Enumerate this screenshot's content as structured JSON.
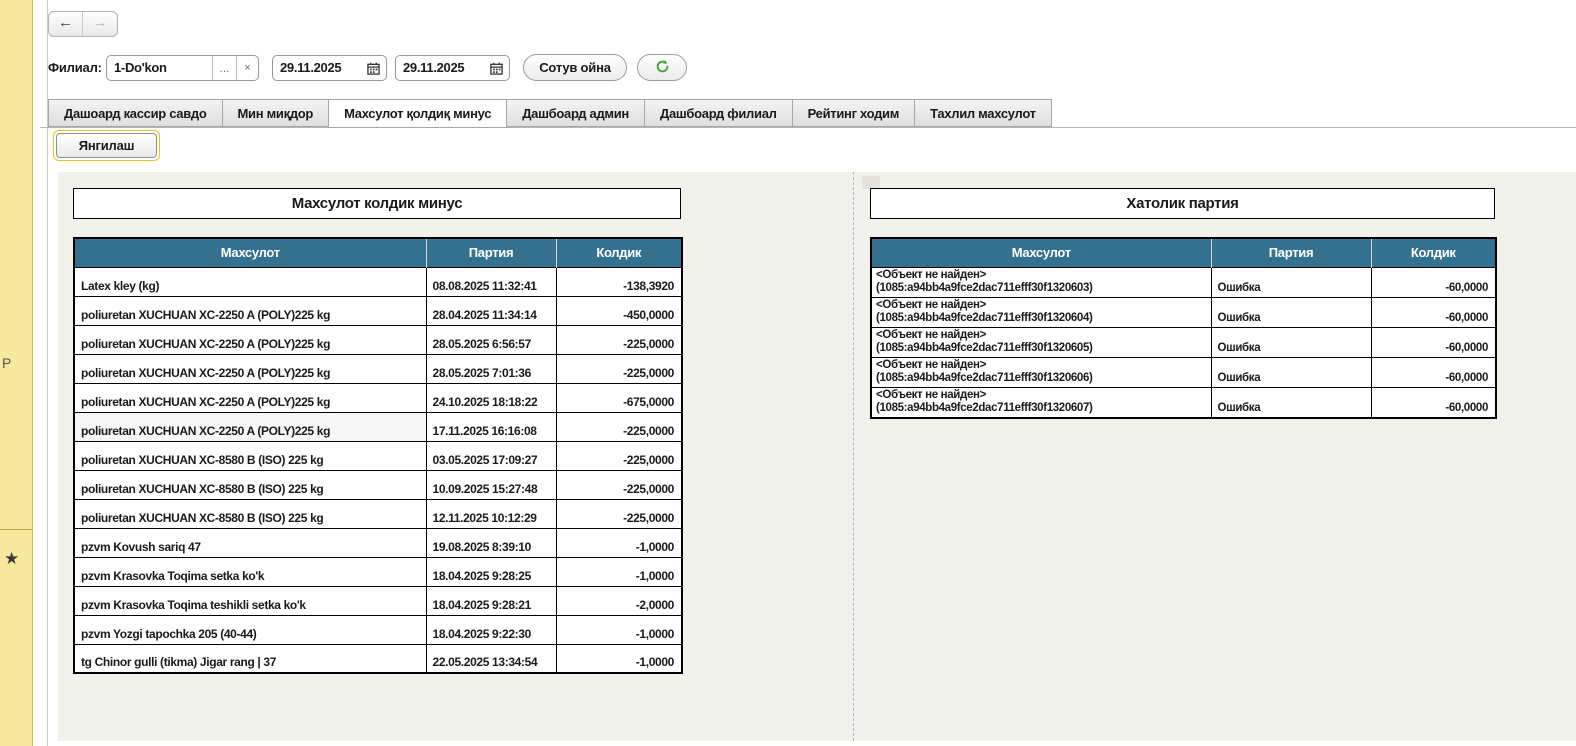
{
  "colors": {
    "accent": "#34718f",
    "sidebar": "#f6e99d",
    "refresh_green": "#3aa636"
  },
  "left_rail": {
    "letter": "P",
    "star": "★"
  },
  "nav": {
    "back": "←",
    "forward": "→"
  },
  "toolbar": {
    "branch_label": "Филиал:",
    "branch_value": "1-Do'kon",
    "lookup_button": "...",
    "clear_button": "×",
    "date_from": "29.11.2025",
    "date_to": "29.11.2025",
    "sales_window_button": "Сотув ойна"
  },
  "tabs": [
    {
      "label": "Дашоард кассир савдо",
      "active": false
    },
    {
      "label": "Мин миқдор",
      "active": false
    },
    {
      "label": "Махсулот қолдиқ минус",
      "active": true
    },
    {
      "label": "Дашбоард админ",
      "active": false
    },
    {
      "label": "Дашбоард филиал",
      "active": false
    },
    {
      "label": "Рейтинг ходим",
      "active": false
    },
    {
      "label": "Тахлил махсулот",
      "active": false
    }
  ],
  "refresh_button_label": "Янгилаш",
  "tables": {
    "minus": {
      "title": "Махсулот колдик минус",
      "columns": [
        "Махсулот",
        "Партия",
        "Колдик"
      ],
      "hover_row_index": 5,
      "rows": [
        [
          "Latex kley (kg)",
          "08.08.2025 11:32:41",
          "-138,3920"
        ],
        [
          "poliuretan XUCHUAN XC-2250 A (POLY)225 kg",
          "28.04.2025 11:34:14",
          "-450,0000"
        ],
        [
          "poliuretan XUCHUAN XC-2250 A (POLY)225 kg",
          "28.05.2025 6:56:57",
          "-225,0000"
        ],
        [
          "poliuretan XUCHUAN XC-2250 A (POLY)225 kg",
          "28.05.2025 7:01:36",
          "-225,0000"
        ],
        [
          "poliuretan XUCHUAN XC-2250 A (POLY)225 kg",
          "24.10.2025 18:18:22",
          "-675,0000"
        ],
        [
          "poliuretan XUCHUAN XC-2250 A (POLY)225 kg",
          "17.11.2025 16:16:08",
          "-225,0000"
        ],
        [
          "poliuretan XUCHUAN XC-8580 B (ISO) 225 kg",
          "03.05.2025 17:09:27",
          "-225,0000"
        ],
        [
          "poliuretan XUCHUAN XC-8580 B (ISO) 225 kg",
          "10.09.2025 15:27:48",
          "-225,0000"
        ],
        [
          "poliuretan XUCHUAN XC-8580 B (ISO) 225 kg",
          "12.11.2025 10:12:29",
          "-225,0000"
        ],
        [
          "pzvm Kovush sariq 47",
          "19.08.2025 8:39:10",
          "-1,0000"
        ],
        [
          "pzvm Krasovka Toqima setka ko'k",
          "18.04.2025 9:28:25",
          "-1,0000"
        ],
        [
          "pzvm Krasovka Toqima teshikli setka ko'k",
          "18.04.2025 9:28:21",
          "-2,0000"
        ],
        [
          "pzvm Yozgi tapochka 205 (40-44)",
          "18.04.2025 9:22:30",
          "-1,0000"
        ],
        [
          "tg Chinor gulli (tikma) Jigar rang | 37",
          "22.05.2025 13:34:54",
          "-1,0000"
        ]
      ]
    },
    "errors": {
      "title": "Хатолик партия",
      "columns": [
        "Махсулот",
        "Партия",
        "Колдик"
      ],
      "rows": [
        {
          "line1": "<Объект не найден>",
          "line2": "(1085:a94bb4a9fce2dac711efff30f1320603)",
          "batch": "Ошибка",
          "qty": "-60,0000"
        },
        {
          "line1": "<Объект не найден>",
          "line2": "(1085:a94bb4a9fce2dac711efff30f1320604)",
          "batch": "Ошибка",
          "qty": "-60,0000"
        },
        {
          "line1": "<Объект не найден>",
          "line2": "(1085:a94bb4a9fce2dac711efff30f1320605)",
          "batch": "Ошибка",
          "qty": "-60,0000"
        },
        {
          "line1": "<Объект не найден>",
          "line2": "(1085:a94bb4a9fce2dac711efff30f1320606)",
          "batch": "Ошибка",
          "qty": "-60,0000"
        },
        {
          "line1": "<Объект не найден>",
          "line2": "(1085:a94bb4a9fce2dac711efff30f1320607)",
          "batch": "Ошибка",
          "qty": "-60,0000"
        }
      ]
    }
  }
}
